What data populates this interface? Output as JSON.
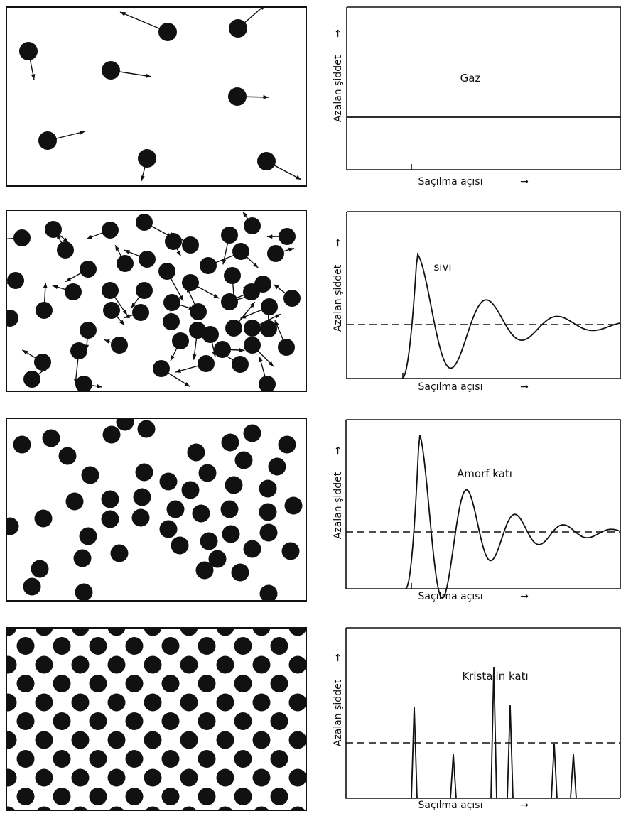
{
  "axis_labels": {
    "y": "Azalan şiddet",
    "x": "Saçılma açısı"
  },
  "arrow_glyph": "→",
  "panels": [
    {
      "id": "gas",
      "title": "Gaz",
      "particle_arrangement": "sparse-random-with-velocity-arrows",
      "curve": "flat-line"
    },
    {
      "id": "liquid",
      "title": "sıvı",
      "particle_arrangement": "dense-random-with-velocity-arrows",
      "curve": "damped-oscillation"
    },
    {
      "id": "amorphous",
      "title": "Amorf katı",
      "particle_arrangement": "dense-random-static",
      "curve": "damped-oscillation"
    },
    {
      "id": "crystal",
      "title": "Kristalin katı",
      "particle_arrangement": "hexagonal-lattice",
      "curve": "sharp-peaks"
    }
  ],
  "colors": {
    "ink": "#111111",
    "paper": "#ffffff"
  }
}
